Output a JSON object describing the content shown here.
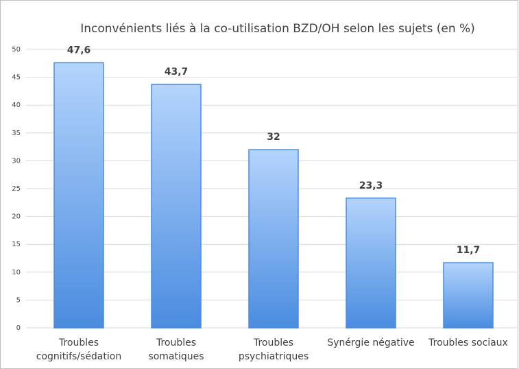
{
  "chart_data": {
    "type": "bar",
    "title": "Inconvénients liés à la co-utilisation BZD/OH selon les sujets (en %)",
    "categories": [
      "Troubles cognitifs/sédation",
      "Troubles somatiques",
      "Troubles psychiatriques",
      "Synérgie négative",
      "Troubles sociaux"
    ],
    "values": [
      47.6,
      43.7,
      32,
      23.3,
      11.7
    ],
    "value_labels": [
      "47,6",
      "43,7",
      "32",
      "23,3",
      "11,7"
    ],
    "color": "#4a8ce0",
    "ylim": [
      0,
      50
    ],
    "yticks": [
      0,
      5,
      10,
      15,
      20,
      25,
      30,
      35,
      40,
      45,
      50
    ],
    "grid": true
  }
}
